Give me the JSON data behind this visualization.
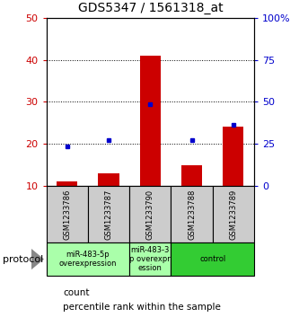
{
  "title": "GDS5347 / 1561318_at",
  "samples": [
    "GSM1233786",
    "GSM1233787",
    "GSM1233790",
    "GSM1233788",
    "GSM1233789"
  ],
  "count_values": [
    11,
    13,
    41,
    15,
    24
  ],
  "percentile_values": [
    19.5,
    21,
    29.5,
    21,
    24.5
  ],
  "ylim_left": [
    10,
    50
  ],
  "ylim_right": [
    0,
    100
  ],
  "yticks_left": [
    10,
    20,
    30,
    40,
    50
  ],
  "yticks_right": [
    0,
    25,
    50,
    75,
    100
  ],
  "ytick_labels_left": [
    "10",
    "20",
    "30",
    "40",
    "50"
  ],
  "ytick_labels_right": [
    "0",
    "25",
    "50",
    "75",
    "100%"
  ],
  "bar_color": "#cc0000",
  "dot_color": "#0000cc",
  "sample_bg_color": "#cccccc",
  "protocol_groups": [
    {
      "label": "miR-483-5p\noverexpression",
      "samples": [
        0,
        1
      ],
      "color": "#aaffaa"
    },
    {
      "label": "miR-483-3\np overexpr\nession",
      "samples": [
        2
      ],
      "color": "#aaffaa"
    },
    {
      "label": "control",
      "samples": [
        3,
        4
      ],
      "color": "#33cc33"
    }
  ],
  "legend_count_label": "count",
  "legend_percentile_label": "percentile rank within the sample",
  "protocol_label": "protocol",
  "bar_width": 0.5
}
